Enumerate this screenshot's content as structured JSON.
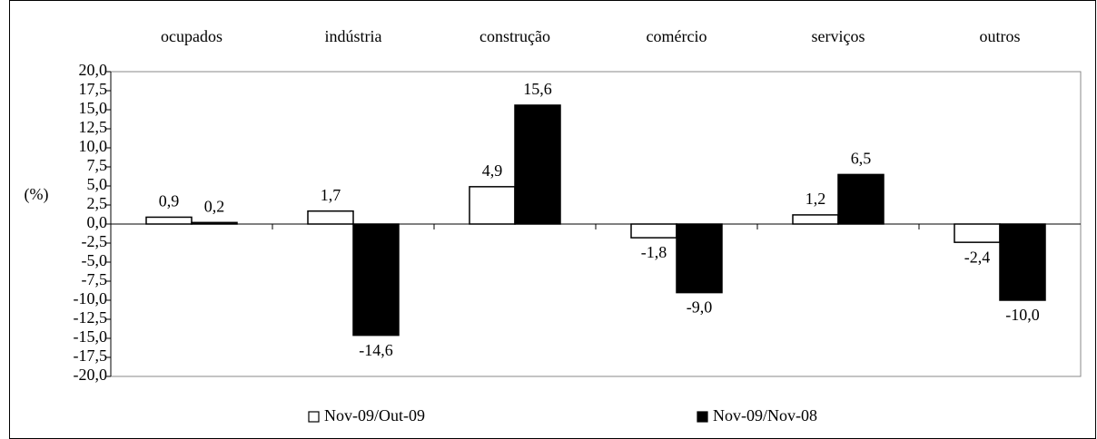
{
  "chart_data": {
    "type": "bar",
    "ylabel": "(%)",
    "categories": [
      "ocupados",
      "indústria",
      "construção",
      "comércio",
      "serviços",
      "outros"
    ],
    "series": [
      {
        "name": "Nov-09/Out-09",
        "color": "#ffffff",
        "values": [
          0.9,
          1.7,
          4.9,
          -1.8,
          1.2,
          -2.4
        ],
        "value_labels": [
          "0,9",
          "1,7",
          "4,9",
          "-1,8",
          "1,2",
          "-2,4"
        ]
      },
      {
        "name": "Nov-09/Nov-08",
        "color": "#000000",
        "values": [
          0.2,
          -14.6,
          15.6,
          -9.0,
          6.5,
          -10.0
        ],
        "value_labels": [
          "0,2",
          "-14,6",
          "15,6",
          "-9,0",
          "6,5",
          "-10,0"
        ]
      }
    ],
    "edgecolor": "#000000",
    "ylim": [
      -20,
      20
    ],
    "yticks": [
      {
        "value": 20,
        "label": "20,0"
      },
      {
        "value": 17.5,
        "label": "17,5"
      },
      {
        "value": 15,
        "label": "15,0"
      },
      {
        "value": 12.5,
        "label": "12,5"
      },
      {
        "value": 10,
        "label": "10,0"
      },
      {
        "value": 7.5,
        "label": "7,5"
      },
      {
        "value": 5,
        "label": "5,0"
      },
      {
        "value": 2.5,
        "label": "2,5"
      },
      {
        "value": 0,
        "label": "0,0"
      },
      {
        "value": -2.5,
        "label": "-2,5"
      },
      {
        "value": -5,
        "label": "-5,0"
      },
      {
        "value": -7.5,
        "label": "-7,5"
      },
      {
        "value": -10,
        "label": "-10,0"
      },
      {
        "value": -12.5,
        "label": "-12,5"
      },
      {
        "value": -15,
        "label": "-15,0"
      },
      {
        "value": -17.5,
        "label": "-17,5"
      },
      {
        "value": -20,
        "label": "-20,0"
      }
    ],
    "grid": false,
    "legend": "bottom"
  }
}
